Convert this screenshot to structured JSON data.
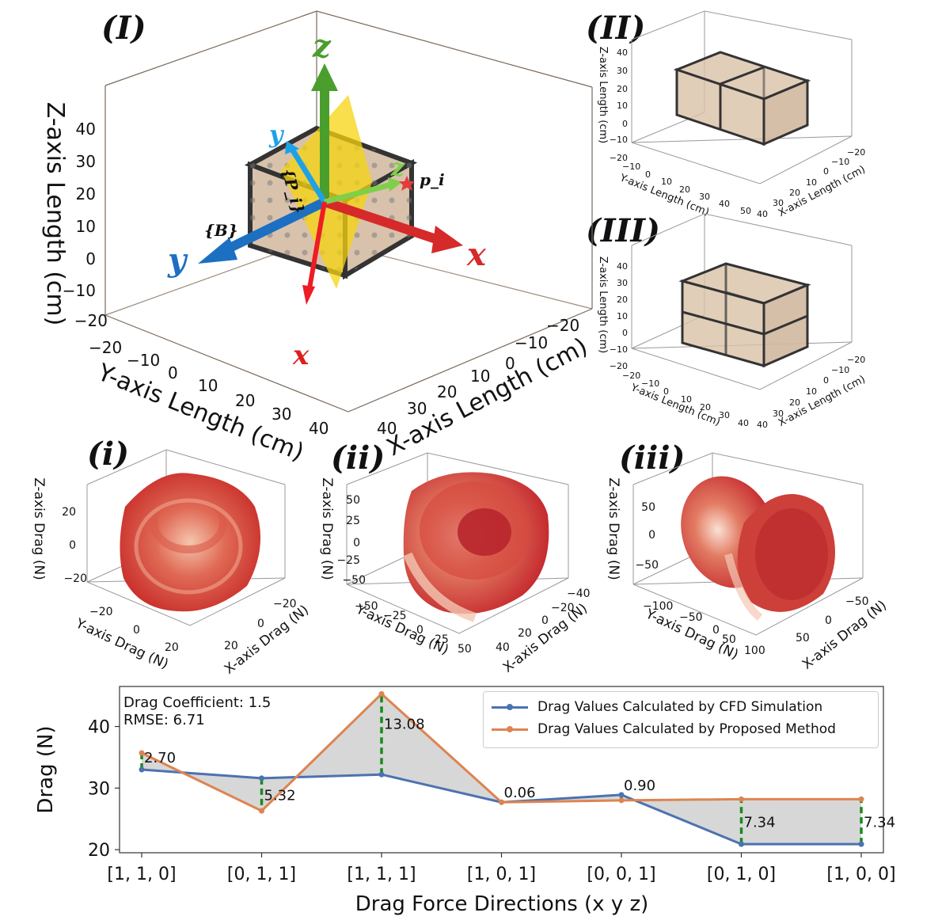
{
  "panels": {
    "I": "(I)",
    "II": "(II)",
    "III": "(III)",
    "i": "(i)",
    "ii": "(ii)",
    "iii": "(iii)"
  },
  "panel_I": {
    "zlabel": "Z-axis Length (cm)",
    "ylabel": "Y-axis Length (cm)",
    "xlabel": "X-axis Length (cm)",
    "z_ticks": [
      "40",
      "30",
      "20",
      "10",
      "0",
      "−10",
      "−20"
    ],
    "y_ticks": [
      "−20",
      "−10",
      "0",
      "10",
      "20",
      "30",
      "40"
    ],
    "x_ticks": [
      "−20",
      "−10",
      "0",
      "10",
      "20",
      "30",
      "40"
    ],
    "arrow_labels": {
      "Z": "z",
      "Y": "y",
      "X": "x",
      "x_small": "x",
      "y_small": "y",
      "z_small": "z",
      "B": "{B}",
      "P": "{P_i}",
      "p": "p_i"
    }
  },
  "panel_II": {
    "zlabel": "Z-axis Length (cm)",
    "ylabel": "Y-axis Length (cm)",
    "xlabel": "X-axis Length (cm)",
    "z_ticks": [
      "40",
      "30",
      "20",
      "10",
      "0",
      "−10",
      "−20"
    ],
    "y_ticks": [
      "−10",
      "0",
      "10",
      "20",
      "30",
      "40",
      "50"
    ],
    "x_ticks": [
      "40",
      "30",
      "20",
      "10",
      "0",
      "−10",
      "−20"
    ]
  },
  "panel_III": {
    "zlabel": "Z-axis Length (cm)",
    "ylabel": "Y-axis Length (cm)",
    "xlabel": "X-axis Length (cm)",
    "z_ticks": [
      "40",
      "30",
      "20",
      "10",
      "0",
      "−10",
      "−20"
    ],
    "y_ticks": [
      "−20",
      "−10",
      "0",
      "10",
      "20",
      "30",
      "40"
    ],
    "x_ticks": [
      "40",
      "30",
      "20",
      "10",
      "0",
      "−10",
      "−20"
    ]
  },
  "panel_i": {
    "zlabel": "Z-axis Drag (N)",
    "ylabel": "Y-axis Drag (N)",
    "xlabel": "X-axis Drag (N)",
    "z_ticks": [
      "20",
      "0",
      "−20"
    ],
    "y_ticks": [
      "−20",
      "0",
      "20"
    ],
    "x_ticks": [
      "20",
      "0",
      "−20"
    ]
  },
  "panel_ii": {
    "zlabel": "Z-axis Drag (N)",
    "ylabel": "Y-axis Drag (N)",
    "xlabel": "X-axis Drag (N)",
    "z_ticks": [
      "50",
      "25",
      "0",
      "−25",
      "−50"
    ],
    "y_ticks": [
      "−50",
      "−25",
      "0",
      "25",
      "50"
    ],
    "x_ticks": [
      "40",
      "20",
      "0",
      "−20",
      "−40"
    ]
  },
  "panel_iii": {
    "zlabel": "Z-axis Drag (N)",
    "ylabel": "Y-axis Drag (N)",
    "xlabel": "X-axis Drag (N)",
    "z_ticks": [
      "50",
      "0",
      "−50"
    ],
    "y_ticks": [
      "−100",
      "−50",
      "0",
      "50",
      "100"
    ],
    "x_ticks": [
      "50",
      "0",
      "−50"
    ]
  },
  "chart_data": {
    "type": "line",
    "title": "",
    "xlabel": "Drag Force Directions (x y z)",
    "ylabel": "Drag (N)",
    "categories": [
      "[1, 1, 0]",
      "[0, 1, 1]",
      "[1, 1, 1]",
      "[1, 0, 1]",
      "[0, 0, 1]",
      "[0, 1, 0]",
      "[1, 0, 0]"
    ],
    "ylim": [
      19.5,
      46.5
    ],
    "yticks": [
      20,
      30,
      40
    ],
    "series": [
      {
        "name": "Drag Values Calculated by CFD Simulation",
        "color": "#4c72b0",
        "values": [
          33.0,
          31.6,
          32.2,
          27.7,
          28.9,
          20.9,
          20.9
        ]
      },
      {
        "name": "Drag Values Calculated by Proposed Method",
        "color": "#dd8452",
        "values": [
          35.7,
          26.3,
          45.3,
          27.7,
          28.0,
          28.2,
          28.2
        ]
      }
    ],
    "diff_labels": [
      "2.70",
      "5.32",
      "13.08",
      "0.06",
      "0.90",
      "7.34",
      "7.34"
    ],
    "annotations": {
      "coef": "Drag Coefficient: 1.5",
      "rmse": "RMSE: 6.71"
    }
  }
}
